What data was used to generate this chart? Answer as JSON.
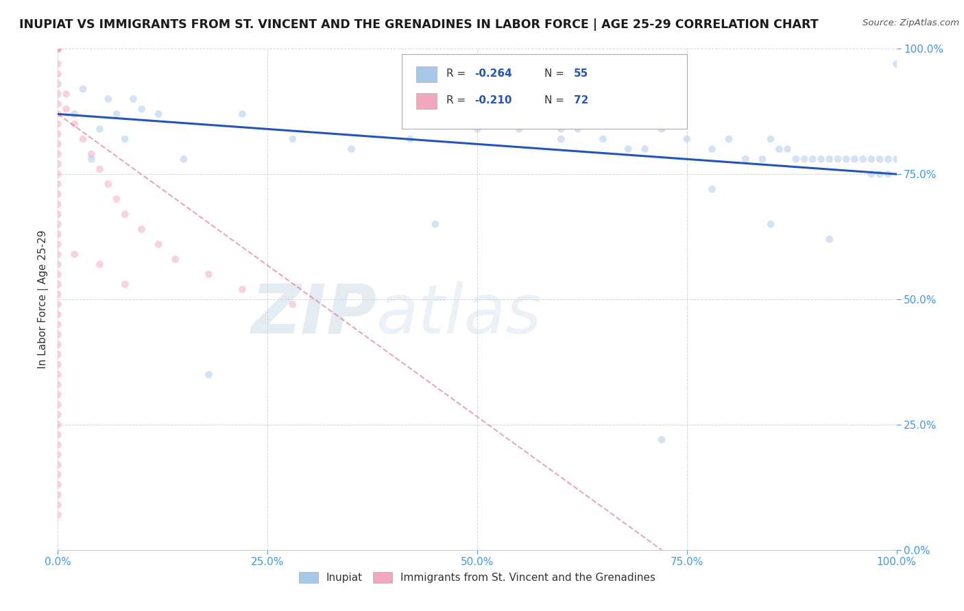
{
  "title": "INUPIAT VS IMMIGRANTS FROM ST. VINCENT AND THE GRENADINES IN LABOR FORCE | AGE 25-29 CORRELATION CHART",
  "source": "Source: ZipAtlas.com",
  "ylabel": "In Labor Force | Age 25-29",
  "xlim": [
    0.0,
    1.0
  ],
  "ylim": [
    0.0,
    1.0
  ],
  "x_ticks": [
    0.0,
    0.25,
    0.5,
    0.75,
    1.0
  ],
  "y_ticks": [
    0.0,
    0.25,
    0.5,
    0.75,
    1.0
  ],
  "x_tick_labels": [
    "0.0%",
    "25.0%",
    "50.0%",
    "75.0%",
    "100.0%"
  ],
  "y_tick_labels_right": [
    "0.0%",
    "25.0%",
    "50.0%",
    "75.0%",
    "100.0%"
  ],
  "watermark_zip": "ZIP",
  "watermark_atlas": "atlas",
  "legend_R1": "-0.264",
  "legend_N1": "55",
  "legend_R2": "-0.210",
  "legend_N2": "72",
  "blue_scatter_x": [
    0.02,
    0.03,
    0.04,
    0.05,
    0.06,
    0.07,
    0.08,
    0.09,
    0.1,
    0.12,
    0.15,
    0.18,
    0.22,
    0.28,
    0.35,
    0.42,
    0.5,
    0.55,
    0.6,
    0.62,
    0.65,
    0.68,
    0.7,
    0.72,
    0.75,
    0.78,
    0.8,
    0.82,
    0.84,
    0.85,
    0.86,
    0.87,
    0.88,
    0.89,
    0.9,
    0.91,
    0.92,
    0.93,
    0.94,
    0.95,
    0.96,
    0.97,
    0.97,
    0.98,
    0.98,
    0.99,
    0.99,
    1.0,
    1.0,
    0.72,
    0.45,
    0.6,
    0.78,
    0.85,
    0.92
  ],
  "blue_scatter_y": [
    0.87,
    0.92,
    0.78,
    0.84,
    0.9,
    0.87,
    0.82,
    0.9,
    0.88,
    0.87,
    0.78,
    0.35,
    0.87,
    0.82,
    0.8,
    0.82,
    0.84,
    0.84,
    0.82,
    0.84,
    0.82,
    0.8,
    0.8,
    0.84,
    0.82,
    0.8,
    0.82,
    0.78,
    0.78,
    0.82,
    0.8,
    0.8,
    0.78,
    0.78,
    0.78,
    0.78,
    0.78,
    0.78,
    0.78,
    0.78,
    0.78,
    0.75,
    0.78,
    0.78,
    0.75,
    0.78,
    0.75,
    0.97,
    0.78,
    0.22,
    0.65,
    0.84,
    0.72,
    0.65,
    0.62
  ],
  "pink_scatter_x": [
    0.0,
    0.0,
    0.0,
    0.0,
    0.0,
    0.0,
    0.0,
    0.0,
    0.0,
    0.0,
    0.0,
    0.0,
    0.0,
    0.0,
    0.0,
    0.0,
    0.0,
    0.0,
    0.0,
    0.0,
    0.0,
    0.0,
    0.0,
    0.0,
    0.0,
    0.0,
    0.0,
    0.0,
    0.0,
    0.0,
    0.0,
    0.0,
    0.0,
    0.0,
    0.0,
    0.0,
    0.0,
    0.0,
    0.0,
    0.0,
    0.0,
    0.0,
    0.0,
    0.0,
    0.0,
    0.0,
    0.0,
    0.0,
    0.0,
    0.0,
    0.0,
    0.0,
    0.0,
    0.0,
    0.01,
    0.01,
    0.02,
    0.03,
    0.04,
    0.05,
    0.06,
    0.07,
    0.08,
    0.1,
    0.12,
    0.14,
    0.18,
    0.22,
    0.28,
    0.02,
    0.05,
    0.08
  ],
  "pink_scatter_y": [
    1.0,
    1.0,
    1.0,
    1.0,
    1.0,
    1.0,
    1.0,
    1.0,
    0.97,
    0.95,
    0.93,
    0.91,
    0.89,
    0.87,
    0.85,
    0.83,
    0.81,
    0.79,
    0.77,
    0.75,
    0.73,
    0.71,
    0.69,
    0.67,
    0.65,
    0.63,
    0.61,
    0.59,
    0.57,
    0.55,
    0.53,
    0.51,
    0.49,
    0.47,
    0.45,
    0.43,
    0.41,
    0.39,
    0.37,
    0.35,
    0.33,
    0.31,
    0.29,
    0.27,
    0.25,
    0.23,
    0.21,
    0.19,
    0.17,
    0.15,
    0.13,
    0.11,
    0.09,
    0.07,
    0.91,
    0.88,
    0.85,
    0.82,
    0.79,
    0.76,
    0.73,
    0.7,
    0.67,
    0.64,
    0.61,
    0.58,
    0.55,
    0.52,
    0.49,
    0.59,
    0.57,
    0.53
  ],
  "blue_line_x": [
    0.0,
    1.0
  ],
  "blue_line_y": [
    0.87,
    0.75
  ],
  "pink_line_x": [
    0.0,
    0.72
  ],
  "pink_line_y": [
    0.87,
    0.0
  ],
  "scatter_size": 60,
  "scatter_alpha": 0.5,
  "blue_color": "#a8c8e8",
  "pink_color": "#f0a8be",
  "blue_edge_color": "#a8c8e8",
  "pink_edge_color": "#f0a8be",
  "blue_line_color": "#2255bb",
  "pink_line_color": "#e08098",
  "background_color": "#ffffff",
  "grid_color": "#cccccc",
  "title_color": "#1a1a1a",
  "tick_color": "#4499dd",
  "ylabel_color": "#333333"
}
